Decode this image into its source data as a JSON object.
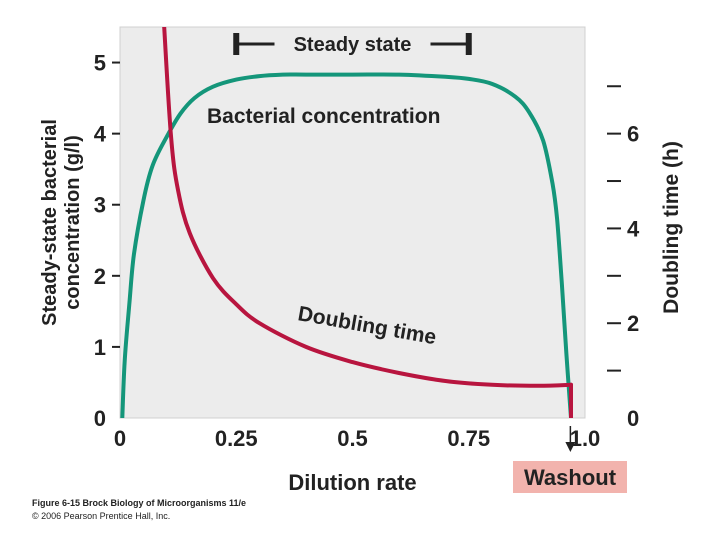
{
  "chart_data": {
    "type": "line",
    "title": "",
    "xlabel": "Dilution rate",
    "ylabel_left": "Steady-state bacterial concentration (g/l)",
    "ylabel_right": "Doubling time (h)",
    "xlim": [
      0,
      1.0
    ],
    "ylim_left": [
      0,
      5.5
    ],
    "ylim_right": [
      0,
      8.25
    ],
    "x_ticks": [
      0,
      0.25,
      0.5,
      0.75,
      1.0
    ],
    "x_tick_labels": [
      "0",
      "0.25",
      "0.5",
      "0.75",
      "1.0"
    ],
    "y_left_ticks": [
      0,
      1,
      2,
      3,
      4,
      5
    ],
    "y_left_tick_labels": [
      "0",
      "1",
      "2",
      "3",
      "4",
      "5"
    ],
    "y_right_ticks": [
      0,
      2,
      4,
      6
    ],
    "y_right_tick_labels": [
      "0",
      "2",
      "4",
      "6"
    ],
    "y_right_minor_ticks": [
      1,
      3,
      5,
      7
    ],
    "series": [
      {
        "name": "Bacterial concentration",
        "axis": "left",
        "color": "#14967a",
        "x": [
          0.005,
          0.01,
          0.02,
          0.03,
          0.05,
          0.07,
          0.1,
          0.13,
          0.16,
          0.2,
          0.25,
          0.3,
          0.35,
          0.4,
          0.5,
          0.6,
          0.7,
          0.75,
          0.8,
          0.85,
          0.88,
          0.91,
          0.93,
          0.94,
          0.95,
          0.96,
          0.97
        ],
        "y": [
          0.0,
          0.8,
          1.6,
          2.3,
          3.05,
          3.55,
          3.95,
          4.28,
          4.5,
          4.66,
          4.76,
          4.81,
          4.83,
          4.83,
          4.83,
          4.83,
          4.8,
          4.77,
          4.7,
          4.52,
          4.3,
          3.9,
          3.3,
          2.8,
          1.9,
          0.9,
          0.0
        ]
      },
      {
        "name": "Doubling time",
        "axis": "right",
        "color": "#b8153f",
        "x": [
          0.095,
          0.11,
          0.125,
          0.15,
          0.2,
          0.25,
          0.3,
          0.4,
          0.5,
          0.6,
          0.7,
          0.8,
          0.9,
          0.97
        ],
        "y": [
          8.25,
          5.9,
          4.8,
          3.9,
          2.95,
          2.4,
          2.0,
          1.5,
          1.18,
          0.95,
          0.78,
          0.7,
          0.68,
          0.7
        ]
      },
      {
        "name": "Doubling time washout drop",
        "axis": "right",
        "color": "#b8153f",
        "x": [
          0.97,
          0.97
        ],
        "y": [
          0.7,
          0.0
        ]
      }
    ],
    "annotations": {
      "steady_state": {
        "label": "Steady state",
        "x_start": 0.25,
        "x_end": 0.75
      },
      "bacterial_label": "Bacterial concentration",
      "doubling_label": "Doubling time",
      "washout": {
        "label": "Washout",
        "x": 0.975
      }
    },
    "legend": "none",
    "grid": false
  },
  "caption": {
    "line1": "Figure 6-15  Brock Biology of Microorganisms 11/e",
    "line2": "© 2006 Pearson Prentice Hall, Inc."
  }
}
